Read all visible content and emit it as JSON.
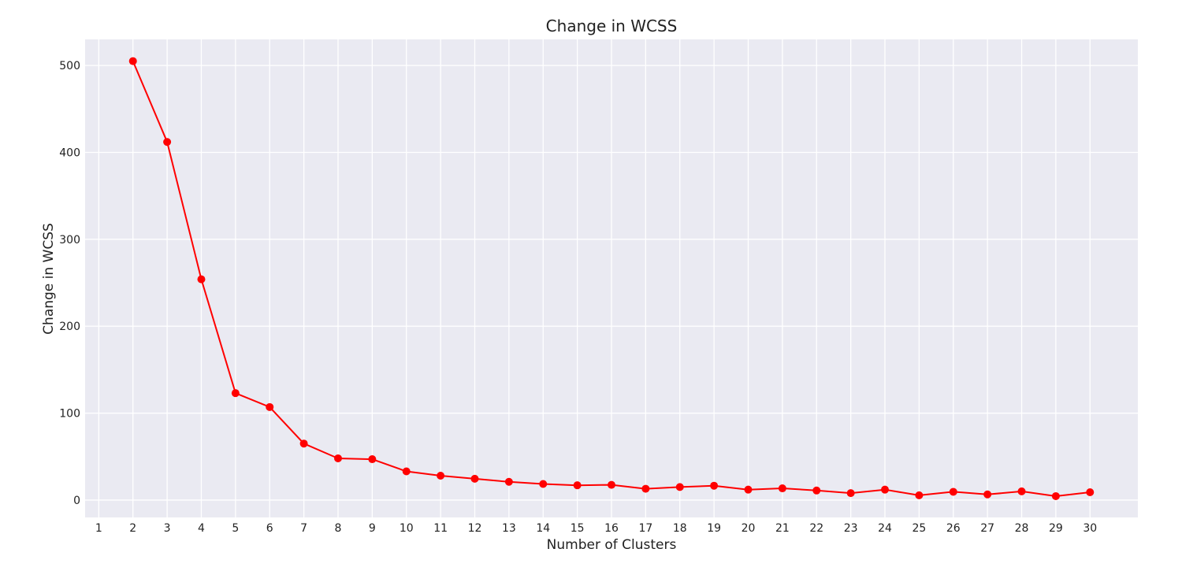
{
  "chart_data": {
    "type": "line",
    "title": "Change in WCSS",
    "xlabel": "Number of Clusters",
    "ylabel": "Change in WCSS",
    "x_ticks": [
      1,
      2,
      3,
      4,
      5,
      6,
      7,
      8,
      9,
      10,
      11,
      12,
      13,
      14,
      15,
      16,
      17,
      18,
      19,
      20,
      21,
      22,
      23,
      24,
      25,
      26,
      27,
      28,
      29,
      30
    ],
    "y_ticks": [
      0,
      100,
      200,
      300,
      400,
      500
    ],
    "xlim": [
      0.6,
      31.4
    ],
    "ylim": [
      -20,
      530
    ],
    "grid": true,
    "series": [
      {
        "x": [
          2,
          3,
          4,
          5,
          6,
          7,
          8,
          9,
          10,
          11,
          12,
          13,
          14,
          15,
          16,
          17,
          18,
          19,
          20,
          21,
          22,
          23,
          24,
          25,
          26,
          27,
          28,
          29,
          30
        ],
        "values": [
          505,
          412,
          254,
          123,
          107,
          65,
          48,
          47,
          33,
          28,
          24.5,
          21,
          18.5,
          17,
          17.5,
          13,
          15,
          16.5,
          12,
          13.5,
          11,
          8,
          12,
          5.5,
          9.5,
          6.5,
          10,
          4.5,
          9
        ],
        "color": "#ff0000",
        "marker": "circle"
      }
    ]
  },
  "colors": {
    "plot_background": "#eaeaf2",
    "grid": "#ffffff",
    "text": "#222222"
  }
}
